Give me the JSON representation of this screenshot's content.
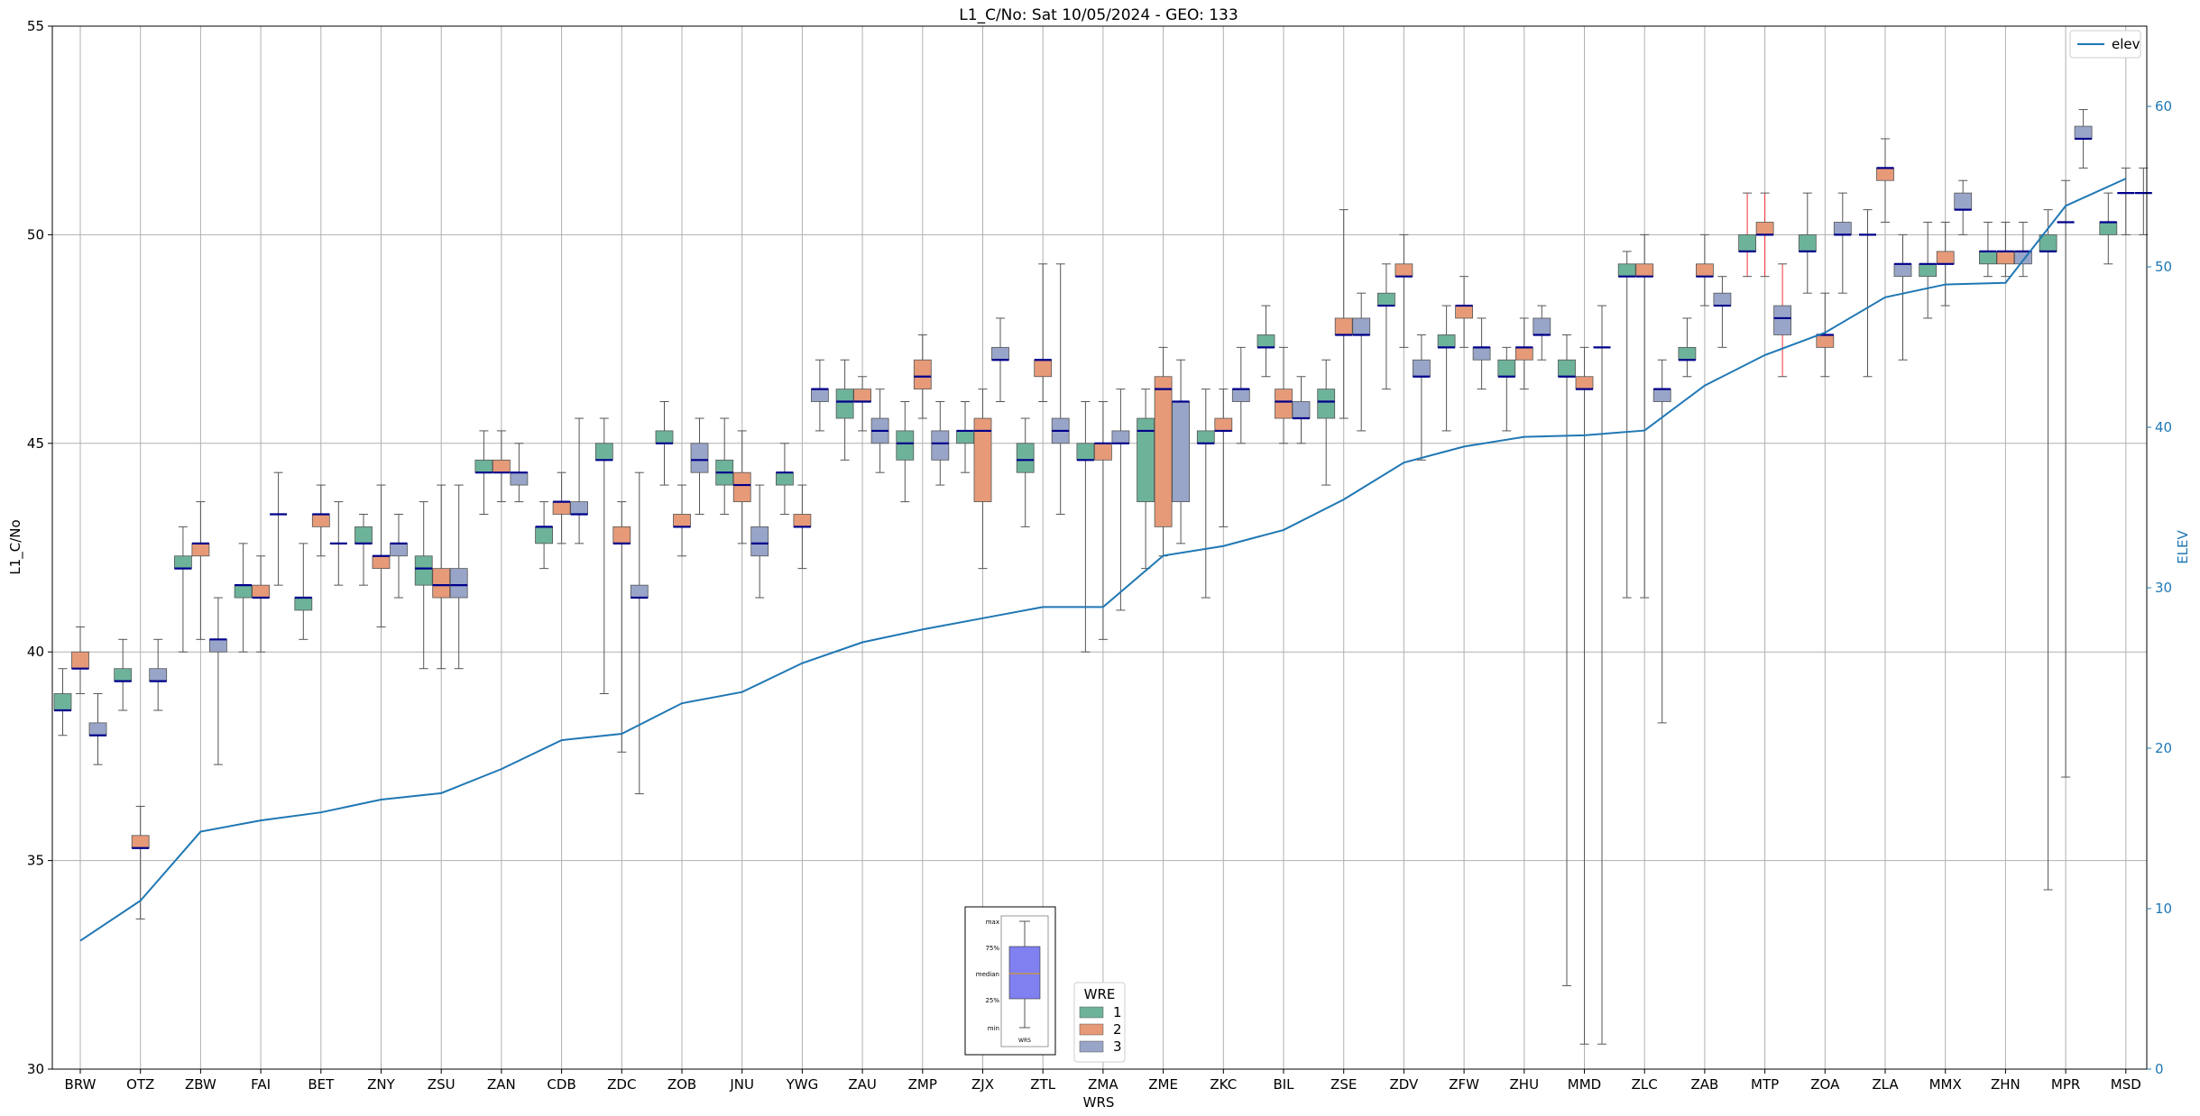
{
  "colors": {
    "wre1": "#6db39a",
    "wre2": "#e79a78",
    "wre3": "#98a5c8",
    "median": "#00008b",
    "whisker": "#555555",
    "whisker_highlight": "#ee3333",
    "elev_line": "#1f77b4",
    "grid": "#b0b0b0",
    "inset_box": "#8080f0"
  },
  "chart_data": {
    "type": "box",
    "title": "L1_C/No: Sat 10/05/2024 - GEO: 133",
    "xlabel": "WRS",
    "ylabel": "L1_C/No",
    "y2label": "ELEV",
    "ylim": [
      30,
      55
    ],
    "y2lim": [
      0,
      65
    ],
    "yticks": [
      "30",
      "35",
      "40",
      "45",
      "50",
      "55"
    ],
    "y2ticks": [
      "0",
      "10",
      "20",
      "30",
      "40",
      "50",
      "60"
    ],
    "grid": true,
    "categories": [
      "BRW",
      "OTZ",
      "ZBW",
      "FAI",
      "BET",
      "ZNY",
      "ZSU",
      "ZAN",
      "CDB",
      "ZDC",
      "ZOB",
      "JNU",
      "YWG",
      "ZAU",
      "ZMP",
      "ZJX",
      "ZTL",
      "ZMA",
      "ZME",
      "ZKC",
      "BIL",
      "ZSE",
      "ZDV",
      "ZFW",
      "ZHU",
      "MMD",
      "ZLC",
      "ZAB",
      "MTP",
      "ZOA",
      "ZLA",
      "MMX",
      "ZHN",
      "MPR",
      "MSD"
    ],
    "box_legend": {
      "title": "WRE",
      "entries": [
        "1",
        "2",
        "3"
      ]
    },
    "line_legend": {
      "label": "elev"
    },
    "inset_key": {
      "labels": [
        "max",
        "75%",
        "median",
        "25%",
        "min"
      ],
      "x_label": "WRS"
    },
    "elev": [
      8,
      10.5,
      14.8,
      15.5,
      16,
      16.8,
      17.2,
      18.7,
      20.5,
      20.9,
      22.8,
      23.5,
      25.3,
      26.6,
      27.4,
      28.1,
      28.8,
      28.8,
      32,
      32.6,
      33.6,
      35.5,
      37.8,
      38.8,
      39.4,
      39.5,
      39.8,
      42.6,
      44.5,
      45.9,
      48.1,
      48.9,
      49,
      53.8,
      55.5
    ],
    "boxes": [
      {
        "cat": "BRW",
        "wre": 1,
        "min": 38.0,
        "q1": 38.6,
        "median": 38.6,
        "q3": 39.0,
        "max": 39.6
      },
      {
        "cat": "BRW",
        "wre": 2,
        "min": 39.0,
        "q1": 39.6,
        "median": 39.6,
        "q3": 40.0,
        "max": 40.6
      },
      {
        "cat": "BRW",
        "wre": 3,
        "min": 37.3,
        "q1": 38.0,
        "median": 38.0,
        "q3": 38.3,
        "max": 39.0
      },
      {
        "cat": "OTZ",
        "wre": 1,
        "min": 38.6,
        "q1": 39.3,
        "median": 39.3,
        "q3": 39.6,
        "max": 40.3
      },
      {
        "cat": "OTZ",
        "wre": 2,
        "min": 33.6,
        "q1": 35.3,
        "median": 35.3,
        "q3": 35.6,
        "max": 36.3
      },
      {
        "cat": "OTZ",
        "wre": 3,
        "min": 38.6,
        "q1": 39.3,
        "median": 39.3,
        "q3": 39.6,
        "max": 40.3
      },
      {
        "cat": "ZBW",
        "wre": 1,
        "min": 40.0,
        "q1": 42.0,
        "median": 42.0,
        "q3": 42.3,
        "max": 43.0
      },
      {
        "cat": "ZBW",
        "wre": 2,
        "min": 40.3,
        "q1": 42.3,
        "median": 42.6,
        "q3": 42.6,
        "max": 43.6
      },
      {
        "cat": "ZBW",
        "wre": 3,
        "min": 37.3,
        "q1": 40.0,
        "median": 40.3,
        "q3": 40.3,
        "max": 41.3
      },
      {
        "cat": "FAI",
        "wre": 1,
        "min": 40.0,
        "q1": 41.3,
        "median": 41.6,
        "q3": 41.6,
        "max": 42.6
      },
      {
        "cat": "FAI",
        "wre": 2,
        "min": 40.0,
        "q1": 41.3,
        "median": 41.3,
        "q3": 41.6,
        "max": 42.3
      },
      {
        "cat": "FAI",
        "wre": 3,
        "min": 41.6,
        "q1": 43.3,
        "median": 43.3,
        "q3": 43.3,
        "max": 44.3
      },
      {
        "cat": "BET",
        "wre": 1,
        "min": 40.3,
        "q1": 41.0,
        "median": 41.3,
        "q3": 41.3,
        "max": 42.6
      },
      {
        "cat": "BET",
        "wre": 2,
        "min": 42.3,
        "q1": 43.0,
        "median": 43.3,
        "q3": 43.3,
        "max": 44.0
      },
      {
        "cat": "BET",
        "wre": 3,
        "min": 41.6,
        "q1": 42.6,
        "median": 42.6,
        "q3": 42.6,
        "max": 43.6
      },
      {
        "cat": "ZNY",
        "wre": 1,
        "min": 41.6,
        "q1": 42.6,
        "median": 42.6,
        "q3": 43.0,
        "max": 43.3
      },
      {
        "cat": "ZNY",
        "wre": 2,
        "min": 40.6,
        "q1": 42.0,
        "median": 42.3,
        "q3": 42.3,
        "max": 44.0
      },
      {
        "cat": "ZNY",
        "wre": 3,
        "min": 41.3,
        "q1": 42.3,
        "median": 42.6,
        "q3": 42.6,
        "max": 43.3
      },
      {
        "cat": "ZSU",
        "wre": 1,
        "min": 39.6,
        "q1": 41.6,
        "median": 42.0,
        "q3": 42.3,
        "max": 43.6
      },
      {
        "cat": "ZSU",
        "wre": 2,
        "min": 39.6,
        "q1": 41.3,
        "median": 41.6,
        "q3": 42.0,
        "max": 44.0
      },
      {
        "cat": "ZSU",
        "wre": 3,
        "min": 39.6,
        "q1": 41.3,
        "median": 41.6,
        "q3": 42.0,
        "max": 44.0
      },
      {
        "cat": "ZAN",
        "wre": 1,
        "min": 43.3,
        "q1": 44.3,
        "median": 44.3,
        "q3": 44.6,
        "max": 45.3
      },
      {
        "cat": "ZAN",
        "wre": 2,
        "min": 43.6,
        "q1": 44.3,
        "median": 44.3,
        "q3": 44.6,
        "max": 45.3
      },
      {
        "cat": "ZAN",
        "wre": 3,
        "min": 43.6,
        "q1": 44.0,
        "median": 44.3,
        "q3": 44.3,
        "max": 45.0
      },
      {
        "cat": "CDB",
        "wre": 1,
        "min": 42.0,
        "q1": 42.6,
        "median": 43.0,
        "q3": 43.0,
        "max": 43.6
      },
      {
        "cat": "CDB",
        "wre": 2,
        "min": 42.6,
        "q1": 43.3,
        "median": 43.6,
        "q3": 43.6,
        "max": 44.3
      },
      {
        "cat": "CDB",
        "wre": 3,
        "min": 42.6,
        "q1": 43.3,
        "median": 43.3,
        "q3": 43.6,
        "max": 45.6
      },
      {
        "cat": "ZDC",
        "wre": 1,
        "min": 39.0,
        "q1": 44.6,
        "median": 44.6,
        "q3": 45.0,
        "max": 45.6
      },
      {
        "cat": "ZDC",
        "wre": 2,
        "min": 37.6,
        "q1": 42.6,
        "median": 42.6,
        "q3": 43.0,
        "max": 43.6
      },
      {
        "cat": "ZDC",
        "wre": 3,
        "min": 36.6,
        "q1": 41.3,
        "median": 41.3,
        "q3": 41.6,
        "max": 44.3
      },
      {
        "cat": "ZOB",
        "wre": 1,
        "min": 44.0,
        "q1": 45.0,
        "median": 45.0,
        "q3": 45.3,
        "max": 46.0
      },
      {
        "cat": "ZOB",
        "wre": 2,
        "min": 42.3,
        "q1": 43.0,
        "median": 43.0,
        "q3": 43.3,
        "max": 44.0
      },
      {
        "cat": "ZOB",
        "wre": 3,
        "min": 43.3,
        "q1": 44.3,
        "median": 44.6,
        "q3": 45.0,
        "max": 45.6
      },
      {
        "cat": "JNU",
        "wre": 1,
        "min": 43.3,
        "q1": 44.0,
        "median": 44.3,
        "q3": 44.6,
        "max": 45.6
      },
      {
        "cat": "JNU",
        "wre": 2,
        "min": 42.6,
        "q1": 43.6,
        "median": 44.0,
        "q3": 44.3,
        "max": 45.3
      },
      {
        "cat": "JNU",
        "wre": 3,
        "min": 41.3,
        "q1": 42.3,
        "median": 42.6,
        "q3": 43.0,
        "max": 44.0
      },
      {
        "cat": "YWG",
        "wre": 1,
        "min": 43.3,
        "q1": 44.0,
        "median": 44.3,
        "q3": 44.3,
        "max": 45.0
      },
      {
        "cat": "YWG",
        "wre": 2,
        "min": 42.0,
        "q1": 43.0,
        "median": 43.0,
        "q3": 43.3,
        "max": 44.0
      },
      {
        "cat": "YWG",
        "wre": 3,
        "min": 45.3,
        "q1": 46.0,
        "median": 46.3,
        "q3": 46.3,
        "max": 47.0
      },
      {
        "cat": "ZAU",
        "wre": 1,
        "min": 44.6,
        "q1": 45.6,
        "median": 46.0,
        "q3": 46.3,
        "max": 47.0
      },
      {
        "cat": "ZAU",
        "wre": 2,
        "min": 45.3,
        "q1": 46.0,
        "median": 46.0,
        "q3": 46.3,
        "max": 46.6
      },
      {
        "cat": "ZAU",
        "wre": 3,
        "min": 44.3,
        "q1": 45.0,
        "median": 45.3,
        "q3": 45.6,
        "max": 46.3
      },
      {
        "cat": "ZMP",
        "wre": 1,
        "min": 43.6,
        "q1": 44.6,
        "median": 45.0,
        "q3": 45.3,
        "max": 46.0
      },
      {
        "cat": "ZMP",
        "wre": 2,
        "min": 45.6,
        "q1": 46.3,
        "median": 46.6,
        "q3": 47.0,
        "max": 47.6
      },
      {
        "cat": "ZMP",
        "wre": 3,
        "min": 44.0,
        "q1": 44.6,
        "median": 45.0,
        "q3": 45.3,
        "max": 46.0
      },
      {
        "cat": "ZJX",
        "wre": 1,
        "min": 44.3,
        "q1": 45.0,
        "median": 45.3,
        "q3": 45.3,
        "max": 46.0
      },
      {
        "cat": "ZJX",
        "wre": 2,
        "min": 42.0,
        "q1": 43.6,
        "median": 45.3,
        "q3": 45.6,
        "max": 46.3
      },
      {
        "cat": "ZJX",
        "wre": 3,
        "min": 46.0,
        "q1": 47.0,
        "median": 47.0,
        "q3": 47.3,
        "max": 48.0
      },
      {
        "cat": "ZTL",
        "wre": 1,
        "min": 43.0,
        "q1": 44.3,
        "median": 44.6,
        "q3": 45.0,
        "max": 45.6
      },
      {
        "cat": "ZTL",
        "wre": 2,
        "min": 46.0,
        "q1": 46.6,
        "median": 47.0,
        "q3": 47.0,
        "max": 49.3
      },
      {
        "cat": "ZTL",
        "wre": 3,
        "min": 43.3,
        "q1": 45.0,
        "median": 45.3,
        "q3": 45.6,
        "max": 49.3
      },
      {
        "cat": "ZMA",
        "wre": 1,
        "min": 40.0,
        "q1": 44.6,
        "median": 44.6,
        "q3": 45.0,
        "max": 46.0
      },
      {
        "cat": "ZMA",
        "wre": 2,
        "min": 40.3,
        "q1": 44.6,
        "median": 45.0,
        "q3": 45.0,
        "max": 46.0
      },
      {
        "cat": "ZMA",
        "wre": 3,
        "min": 41.0,
        "q1": 45.0,
        "median": 45.0,
        "q3": 45.3,
        "max": 46.3
      },
      {
        "cat": "ZME",
        "wre": 1,
        "min": 42.0,
        "q1": 43.6,
        "median": 45.3,
        "q3": 45.6,
        "max": 46.3
      },
      {
        "cat": "ZME",
        "wre": 2,
        "min": 42.3,
        "q1": 43.0,
        "median": 46.3,
        "q3": 46.6,
        "max": 47.3
      },
      {
        "cat": "ZME",
        "wre": 3,
        "min": 42.6,
        "q1": 43.6,
        "median": 46.0,
        "q3": 46.0,
        "max": 47.0
      },
      {
        "cat": "ZKC",
        "wre": 1,
        "min": 41.3,
        "q1": 45.0,
        "median": 45.0,
        "q3": 45.3,
        "max": 46.3
      },
      {
        "cat": "ZKC",
        "wre": 2,
        "min": 43.0,
        "q1": 45.3,
        "median": 45.3,
        "q3": 45.6,
        "max": 46.3
      },
      {
        "cat": "ZKC",
        "wre": 3,
        "min": 45.0,
        "q1": 46.0,
        "median": 46.3,
        "q3": 46.3,
        "max": 47.3
      },
      {
        "cat": "BIL",
        "wre": 1,
        "min": 46.6,
        "q1": 47.3,
        "median": 47.3,
        "q3": 47.6,
        "max": 48.3
      },
      {
        "cat": "BIL",
        "wre": 2,
        "min": 45.0,
        "q1": 45.6,
        "median": 46.0,
        "q3": 46.3,
        "max": 47.3
      },
      {
        "cat": "BIL",
        "wre": 3,
        "min": 45.0,
        "q1": 45.6,
        "median": 45.6,
        "q3": 46.0,
        "max": 46.6
      },
      {
        "cat": "ZSE",
        "wre": 1,
        "min": 44.0,
        "q1": 45.6,
        "median": 46.0,
        "q3": 46.3,
        "max": 47.0
      },
      {
        "cat": "ZSE",
        "wre": 2,
        "min": 45.6,
        "q1": 47.6,
        "median": 47.6,
        "q3": 48.0,
        "max": 50.6
      },
      {
        "cat": "ZSE",
        "wre": 3,
        "min": 45.3,
        "q1": 47.6,
        "median": 47.6,
        "q3": 48.0,
        "max": 48.6
      },
      {
        "cat": "ZDV",
        "wre": 1,
        "min": 46.3,
        "q1": 48.3,
        "median": 48.3,
        "q3": 48.6,
        "max": 49.3
      },
      {
        "cat": "ZDV",
        "wre": 2,
        "min": 47.3,
        "q1": 49.0,
        "median": 49.0,
        "q3": 49.3,
        "max": 50.0
      },
      {
        "cat": "ZDV",
        "wre": 3,
        "min": 44.6,
        "q1": 46.6,
        "median": 46.6,
        "q3": 47.0,
        "max": 47.6
      },
      {
        "cat": "ZFW",
        "wre": 1,
        "min": 45.3,
        "q1": 47.3,
        "median": 47.3,
        "q3": 47.6,
        "max": 48.3
      },
      {
        "cat": "ZFW",
        "wre": 2,
        "min": 47.3,
        "q1": 48.0,
        "median": 48.3,
        "q3": 48.3,
        "max": 49.0
      },
      {
        "cat": "ZFW",
        "wre": 3,
        "min": 46.3,
        "q1": 47.0,
        "median": 47.3,
        "q3": 47.3,
        "max": 48.0
      },
      {
        "cat": "ZHU",
        "wre": 1,
        "min": 45.3,
        "q1": 46.6,
        "median": 46.6,
        "q3": 47.0,
        "max": 47.3
      },
      {
        "cat": "ZHU",
        "wre": 2,
        "min": 46.3,
        "q1": 47.0,
        "median": 47.3,
        "q3": 47.3,
        "max": 48.0
      },
      {
        "cat": "ZHU",
        "wre": 3,
        "min": 47.0,
        "q1": 47.6,
        "median": 47.6,
        "q3": 48.0,
        "max": 48.3
      },
      {
        "cat": "MMD",
        "wre": 1,
        "min": 32.0,
        "q1": 46.6,
        "median": 46.6,
        "q3": 47.0,
        "max": 47.6
      },
      {
        "cat": "MMD",
        "wre": 2,
        "min": 30.6,
        "q1": 46.3,
        "median": 46.3,
        "q3": 46.6,
        "max": 47.3
      },
      {
        "cat": "MMD",
        "wre": 3,
        "min": 30.6,
        "q1": 47.3,
        "median": 47.3,
        "q3": 47.3,
        "max": 48.3
      },
      {
        "cat": "ZLC",
        "wre": 1,
        "min": 41.3,
        "q1": 49.0,
        "median": 49.0,
        "q3": 49.3,
        "max": 49.6
      },
      {
        "cat": "ZLC",
        "wre": 2,
        "min": 41.3,
        "q1": 49.0,
        "median": 49.0,
        "q3": 49.3,
        "max": 50.0
      },
      {
        "cat": "ZLC",
        "wre": 3,
        "min": 38.3,
        "q1": 46.0,
        "median": 46.3,
        "q3": 46.3,
        "max": 47.0
      },
      {
        "cat": "ZAB",
        "wre": 1,
        "min": 46.6,
        "q1": 47.0,
        "median": 47.0,
        "q3": 47.3,
        "max": 48.0
      },
      {
        "cat": "ZAB",
        "wre": 2,
        "min": 48.3,
        "q1": 49.0,
        "median": 49.0,
        "q3": 49.3,
        "max": 50.0
      },
      {
        "cat": "ZAB",
        "wre": 3,
        "min": 47.3,
        "q1": 48.3,
        "median": 48.3,
        "q3": 48.6,
        "max": 49.0
      },
      {
        "cat": "MTP",
        "wre": 1,
        "min": 49.0,
        "q1": 49.6,
        "median": 49.6,
        "q3": 50.0,
        "max": 51.0,
        "whisker": "highlight"
      },
      {
        "cat": "MTP",
        "wre": 2,
        "min": 49.0,
        "q1": 50.0,
        "median": 50.0,
        "q3": 50.3,
        "max": 51.0,
        "whisker": "highlight"
      },
      {
        "cat": "MTP",
        "wre": 3,
        "min": 46.6,
        "q1": 47.6,
        "median": 48.0,
        "q3": 48.3,
        "max": 49.3,
        "whisker": "highlight"
      },
      {
        "cat": "ZOA",
        "wre": 1,
        "min": 48.6,
        "q1": 49.6,
        "median": 49.6,
        "q3": 50.0,
        "max": 51.0
      },
      {
        "cat": "ZOA",
        "wre": 2,
        "min": 46.6,
        "q1": 47.3,
        "median": 47.6,
        "q3": 47.6,
        "max": 48.6
      },
      {
        "cat": "ZOA",
        "wre": 3,
        "min": 48.6,
        "q1": 50.0,
        "median": 50.0,
        "q3": 50.3,
        "max": 51.0
      },
      {
        "cat": "ZLA",
        "wre": 1,
        "min": 46.6,
        "q1": 50.0,
        "median": 50.0,
        "q3": 50.0,
        "max": 50.6
      },
      {
        "cat": "ZLA",
        "wre": 2,
        "min": 50.3,
        "q1": 51.3,
        "median": 51.6,
        "q3": 51.6,
        "max": 52.3
      },
      {
        "cat": "ZLA",
        "wre": 3,
        "min": 47.0,
        "q1": 49.0,
        "median": 49.3,
        "q3": 49.3,
        "max": 50.0
      },
      {
        "cat": "MMX",
        "wre": 1,
        "min": 48.0,
        "q1": 49.0,
        "median": 49.3,
        "q3": 49.3,
        "max": 50.3
      },
      {
        "cat": "MMX",
        "wre": 2,
        "min": 48.3,
        "q1": 49.3,
        "median": 49.3,
        "q3": 49.6,
        "max": 50.3
      },
      {
        "cat": "MMX",
        "wre": 3,
        "min": 50.0,
        "q1": 50.6,
        "median": 50.6,
        "q3": 51.0,
        "max": 51.3
      },
      {
        "cat": "ZHN",
        "wre": 1,
        "min": 49.0,
        "q1": 49.3,
        "median": 49.6,
        "q3": 49.6,
        "max": 50.3
      },
      {
        "cat": "ZHN",
        "wre": 2,
        "min": 49.0,
        "q1": 49.3,
        "median": 49.6,
        "q3": 49.6,
        "max": 50.3
      },
      {
        "cat": "ZHN",
        "wre": 3,
        "min": 49.0,
        "q1": 49.3,
        "median": 49.6,
        "q3": 49.6,
        "max": 50.3
      },
      {
        "cat": "MPR",
        "wre": 1,
        "min": 34.3,
        "q1": 49.6,
        "median": 49.6,
        "q3": 50.0,
        "max": 50.6
      },
      {
        "cat": "MPR",
        "wre": 2,
        "min": 37.0,
        "q1": 50.3,
        "median": 50.3,
        "q3": 50.3,
        "max": 51.3
      },
      {
        "cat": "MPR",
        "wre": 3,
        "min": 51.6,
        "q1": 52.3,
        "median": 52.3,
        "q3": 52.6,
        "max": 53.0
      },
      {
        "cat": "MSD",
        "wre": 1,
        "min": 49.3,
        "q1": 50.0,
        "median": 50.3,
        "q3": 50.3,
        "max": 51.0
      },
      {
        "cat": "MSD",
        "wre": 2,
        "min": 50.0,
        "q1": 51.0,
        "median": 51.0,
        "q3": 51.0,
        "max": 51.6
      },
      {
        "cat": "MSD",
        "wre": 3,
        "min": 50.0,
        "q1": 51.0,
        "median": 51.0,
        "q3": 51.0,
        "max": 51.6
      }
    ]
  }
}
